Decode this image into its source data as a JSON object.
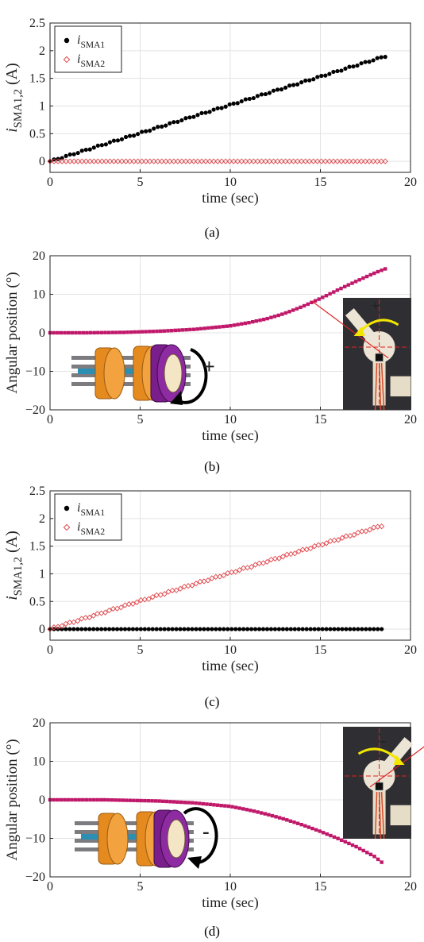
{
  "colors": {
    "sma1": "#000000",
    "sma2": "#e0474c",
    "angle_line": "#b0104a",
    "angle_marker": "#c0186a",
    "grid": "#e3e3e3",
    "axis": "#222222",
    "orange": "#e58a1f",
    "purple": "#7a1e8c",
    "cream": "#f4e6c4",
    "photo_bg": "#2f2f33"
  },
  "chart_data": [
    {
      "type": "scatter",
      "caption": "(a)",
      "xlabel": "time (sec)",
      "ylabel": "i_SMA1,2 (A)",
      "ylabel_main": "i",
      "ylabel_sub": "SMA1,2",
      "ylabel_unit": " (A)",
      "xlim": [
        0,
        20
      ],
      "ylim": [
        -0.2,
        2.5
      ],
      "xticks": [
        0,
        5,
        10,
        15,
        20
      ],
      "yticks": [
        0,
        0.5,
        1,
        1.5,
        2,
        2.5
      ],
      "ytick_labels": [
        "0",
        "0.5",
        "1",
        "1.5",
        "2",
        "2.5"
      ],
      "grid": true,
      "legend": "top-left",
      "series": [
        {
          "name": "i_SMA1",
          "legend_main": "i",
          "legend_sub": "SMA1",
          "marker": "filled-circle",
          "color": "#000000",
          "x_start": 0,
          "x_end": 18.6,
          "y_start": 0,
          "y_end": 1.9,
          "shape": "linear"
        },
        {
          "name": "i_SMA2",
          "legend_main": "i",
          "legend_sub": "SMA2",
          "marker": "open-diamond",
          "color": "#e0474c",
          "x_start": 0,
          "x_end": 18.6,
          "y_start": 0,
          "y_end": 0,
          "shape": "constant"
        }
      ]
    },
    {
      "type": "line",
      "caption": "(b)",
      "xlabel": "time (sec)",
      "ylabel": "Angular position (°)",
      "xlim": [
        0,
        20
      ],
      "ylim": [
        -20,
        20
      ],
      "xticks": [
        0,
        5,
        10,
        15,
        20
      ],
      "yticks": [
        -20,
        -10,
        0,
        10,
        20
      ],
      "ytick_labels": [
        "−20",
        "−10",
        "0",
        "10",
        "20"
      ],
      "grid": true,
      "series": [
        {
          "points": [
            [
              0,
              0
            ],
            [
              2,
              0
            ],
            [
              4,
              0.1
            ],
            [
              6,
              0.4
            ],
            [
              8,
              0.9
            ],
            [
              10,
              1.8
            ],
            [
              11,
              2.6
            ],
            [
              12,
              3.6
            ],
            [
              13,
              5
            ],
            [
              14,
              6.8
            ],
            [
              15,
              8.9
            ],
            [
              16,
              11.2
            ],
            [
              17,
              13.4
            ],
            [
              18,
              15.5
            ],
            [
              18.6,
              16.6
            ]
          ],
          "color": "#c0186a"
        }
      ],
      "annotation": {
        "symbol": "+",
        "direction": "counterclockwise"
      }
    },
    {
      "type": "scatter",
      "caption": "(c)",
      "xlabel": "time (sec)",
      "ylabel": "i_SMA1,2 (A)",
      "ylabel_main": "i",
      "ylabel_sub": "SMA1,2",
      "ylabel_unit": " (A)",
      "xlim": [
        0,
        20
      ],
      "ylim": [
        -0.2,
        2.5
      ],
      "xticks": [
        0,
        5,
        10,
        15,
        20
      ],
      "yticks": [
        0,
        0.5,
        1,
        1.5,
        2,
        2.5
      ],
      "ytick_labels": [
        "0",
        "0.5",
        "1",
        "1.5",
        "2",
        "2.5"
      ],
      "grid": true,
      "legend": "top-left",
      "series": [
        {
          "name": "i_SMA1",
          "legend_main": "i",
          "legend_sub": "SMA1",
          "marker": "filled-circle",
          "color": "#000000",
          "x_start": 0,
          "x_end": 18.4,
          "y_start": 0,
          "y_end": 0,
          "shape": "constant"
        },
        {
          "name": "i_SMA2",
          "legend_main": "i",
          "legend_sub": "SMA2",
          "marker": "open-diamond",
          "color": "#e0474c",
          "x_start": 0,
          "x_end": 18.4,
          "y_start": 0,
          "y_end": 1.87,
          "shape": "linear"
        }
      ]
    },
    {
      "type": "line",
      "caption": "(d)",
      "xlabel": "time (sec)",
      "ylabel": "Angular position (°)",
      "xlim": [
        0,
        20
      ],
      "ylim": [
        -20,
        20
      ],
      "xticks": [
        0,
        5,
        10,
        15,
        20
      ],
      "yticks": [
        -20,
        -10,
        0,
        10,
        20
      ],
      "ytick_labels": [
        "−20",
        "−10",
        "0",
        "10",
        "20"
      ],
      "grid": true,
      "series": [
        {
          "points": [
            [
              0,
              0
            ],
            [
              3,
              0
            ],
            [
              6,
              -0.3
            ],
            [
              8,
              -0.8
            ],
            [
              10,
              -1.7
            ],
            [
              11,
              -2.6
            ],
            [
              12,
              -3.7
            ],
            [
              13,
              -5
            ],
            [
              14,
              -6.5
            ],
            [
              15,
              -8.2
            ],
            [
              16,
              -10.1
            ],
            [
              17,
              -12.2
            ],
            [
              18,
              -14.7
            ],
            [
              18.4,
              -16.2
            ]
          ],
          "color": "#c0186a"
        }
      ],
      "annotation": {
        "symbol": "-",
        "direction": "clockwise"
      }
    }
  ]
}
